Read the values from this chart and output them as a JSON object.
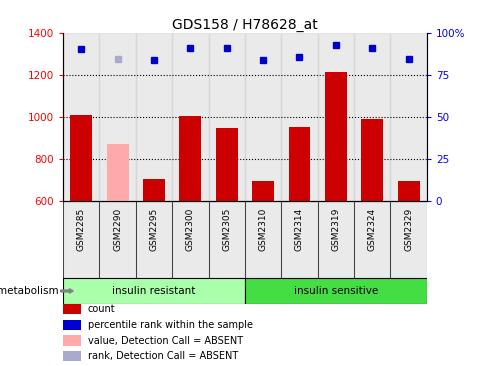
{
  "title": "GDS158 / H78628_at",
  "samples": [
    "GSM2285",
    "GSM2290",
    "GSM2295",
    "GSM2300",
    "GSM2305",
    "GSM2310",
    "GSM2314",
    "GSM2319",
    "GSM2324",
    "GSM2329"
  ],
  "bar_values": [
    1010,
    870,
    705,
    1005,
    950,
    695,
    955,
    1215,
    990,
    695
  ],
  "bar_colors": [
    "#cc0000",
    "#ffaaaa",
    "#cc0000",
    "#cc0000",
    "#cc0000",
    "#cc0000",
    "#cc0000",
    "#cc0000",
    "#cc0000",
    "#cc0000"
  ],
  "rank_values": [
    1325,
    1275,
    1270,
    1330,
    1330,
    1270,
    1285,
    1345,
    1330,
    1275
  ],
  "rank_colors": [
    "#0000cc",
    "#aaaacc",
    "#0000cc",
    "#0000cc",
    "#0000cc",
    "#0000cc",
    "#0000cc",
    "#0000cc",
    "#0000cc",
    "#0000cc"
  ],
  "ylim_left": [
    600,
    1400
  ],
  "ylim_right": [
    0,
    100
  ],
  "yticks_left": [
    600,
    800,
    1000,
    1200,
    1400
  ],
  "yticks_right": [
    0,
    25,
    50,
    75,
    100
  ],
  "ytick_labels_right": [
    "0",
    "25",
    "50",
    "75",
    "100%"
  ],
  "groups": [
    {
      "label": "insulin resistant",
      "color": "#aaffaa",
      "start": 0,
      "end": 5
    },
    {
      "label": "insulin sensitive",
      "color": "#44dd44",
      "start": 5,
      "end": 10
    }
  ],
  "metabolism_label": "metabolism",
  "legend_items": [
    {
      "label": "count",
      "color": "#cc0000"
    },
    {
      "label": "percentile rank within the sample",
      "color": "#0000cc"
    },
    {
      "label": "value, Detection Call = ABSENT",
      "color": "#ffaaaa"
    },
    {
      "label": "rank, Detection Call = ABSENT",
      "color": "#aaaacc"
    }
  ],
  "background_color": "#ffffff",
  "col_bg_color": "#cccccc",
  "col_bg_alpha": 0.4
}
